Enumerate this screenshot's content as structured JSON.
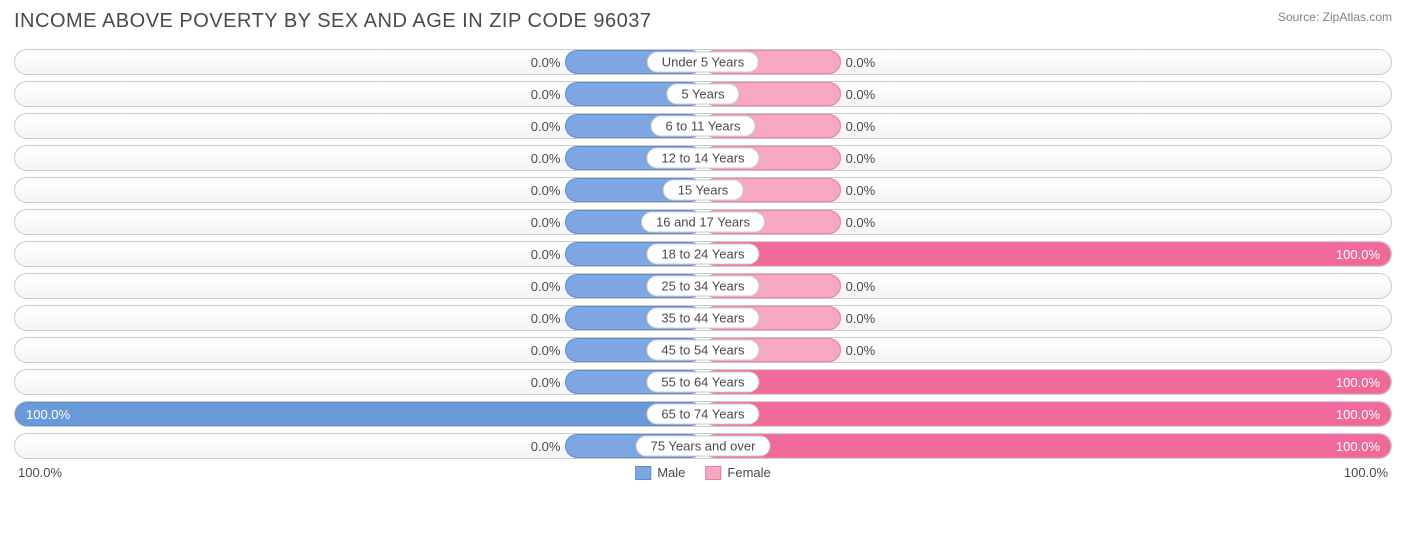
{
  "header": {
    "title": "INCOME ABOVE POVERTY BY SEX AND AGE IN ZIP CODE 96037",
    "source": "Source: ZipAtlas.com"
  },
  "chart": {
    "type": "diverging-bar",
    "min_bar_pct": 20,
    "colors": {
      "male_fill": "#7ea6e0",
      "male_border": "#5b8dd6",
      "male_full_fill": "#6a9bd8",
      "female_fill": "#f6a8c0",
      "female_border": "#ef7ba3",
      "female_full_fill": "#ef6a9a",
      "track_border": "#cccccc",
      "text": "#4a4a4a",
      "text_inside": "#ffffff",
      "background": "#ffffff"
    },
    "categories": [
      {
        "label": "Under 5 Years",
        "male": 0.0,
        "female": 0.0
      },
      {
        "label": "5 Years",
        "male": 0.0,
        "female": 0.0
      },
      {
        "label": "6 to 11 Years",
        "male": 0.0,
        "female": 0.0
      },
      {
        "label": "12 to 14 Years",
        "male": 0.0,
        "female": 0.0
      },
      {
        "label": "15 Years",
        "male": 0.0,
        "female": 0.0
      },
      {
        "label": "16 and 17 Years",
        "male": 0.0,
        "female": 0.0
      },
      {
        "label": "18 to 24 Years",
        "male": 0.0,
        "female": 100.0
      },
      {
        "label": "25 to 34 Years",
        "male": 0.0,
        "female": 0.0
      },
      {
        "label": "35 to 44 Years",
        "male": 0.0,
        "female": 0.0
      },
      {
        "label": "45 to 54 Years",
        "male": 0.0,
        "female": 0.0
      },
      {
        "label": "55 to 64 Years",
        "male": 0.0,
        "female": 100.0
      },
      {
        "label": "65 to 74 Years",
        "male": 100.0,
        "female": 100.0
      },
      {
        "label": "75 Years and over",
        "male": 0.0,
        "female": 100.0
      }
    ],
    "axis": {
      "left": "100.0%",
      "right": "100.0%"
    },
    "legend": {
      "male": "Male",
      "female": "Female"
    }
  }
}
